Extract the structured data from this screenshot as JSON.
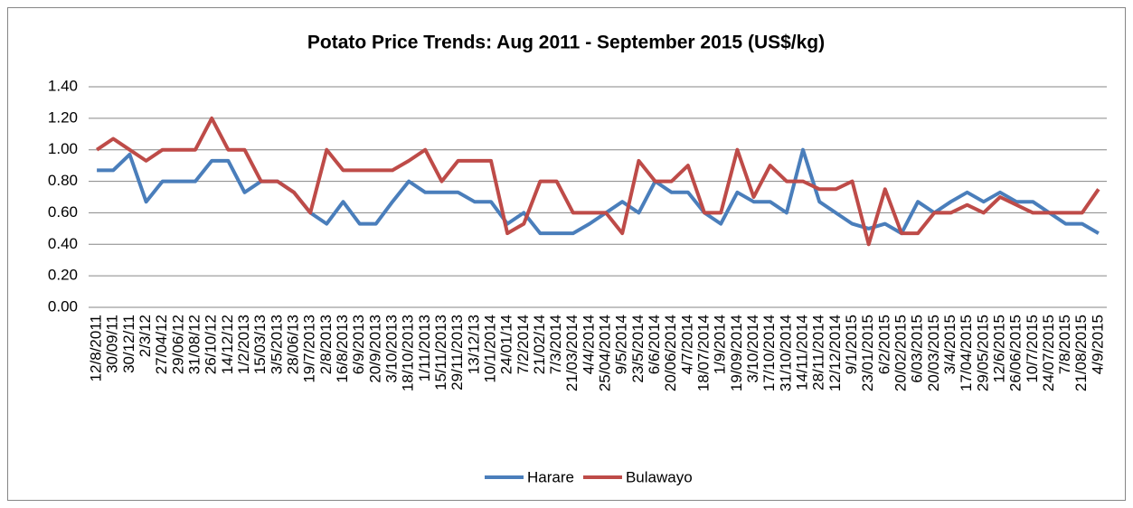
{
  "chart_data": {
    "type": "line",
    "title": "Potato Price Trends: Aug 2011 - September 2015 (US$/kg)",
    "categories": [
      "12/8/2011",
      "30/09/11",
      "30/12/11",
      "2/3/12",
      "27/04/12",
      "29/06/12",
      "31/08/12",
      "26/10/12",
      "14/12/12",
      "1/2/2013",
      "15/03/13",
      "3/5/2013",
      "28/06/13",
      "19/7/2013",
      "2/8/2013",
      "16/8/2013",
      "6/9/2013",
      "20/9/2013",
      "3/10/2013",
      "18/10/2013",
      "1/11/2013",
      "15/11/2013",
      "29/11/2013",
      "13/12/13",
      "10/1/2014",
      "24/01/14",
      "7/2/2014",
      "21/02/14",
      "7/3/2014",
      "21/03/2014",
      "4/4/2014",
      "25/04/2014",
      "9/5/2014",
      "23/5/2014",
      "6/6/2014",
      "20/06/2014",
      "4/7/2014",
      "18/07/2014",
      "1/9/2014",
      "19/09/2014",
      "3/10/2014",
      "17/10/2014",
      "31/10/2014",
      "14/11/2014",
      "28/11/2014",
      "12/12/2014",
      "9/1/2015",
      "23/01/2015",
      "6/2/2015",
      "20/02/2015",
      "6/03/2015",
      "20/03/2015",
      "3/4/2015",
      "17/04/2015",
      "29/05/2015",
      "12/6/2015",
      "26/06/2015",
      "10/7/2015",
      "24/07/2015",
      "7/8/2015",
      "21/08/2015",
      "4/9/2015"
    ],
    "series": [
      {
        "name": "Harare",
        "color": "#4a7ebb",
        "values": [
          0.87,
          0.87,
          0.97,
          0.67,
          0.8,
          0.8,
          0.8,
          0.93,
          0.93,
          0.73,
          0.8,
          0.8,
          0.73,
          0.6,
          0.53,
          0.67,
          0.53,
          0.53,
          0.67,
          0.8,
          0.73,
          0.73,
          0.73,
          0.67,
          0.67,
          0.53,
          0.6,
          0.47,
          0.47,
          0.47,
          0.53,
          0.6,
          0.67,
          0.6,
          0.8,
          0.73,
          0.73,
          0.6,
          0.53,
          0.73,
          0.67,
          0.67,
          0.6,
          1.0,
          0.67,
          0.6,
          0.53,
          0.5,
          0.53,
          0.47,
          0.67,
          0.6,
          0.67,
          0.73,
          0.67,
          0.73,
          0.67,
          0.67,
          0.6,
          0.53,
          0.53,
          0.47
        ]
      },
      {
        "name": "Bulawayo",
        "color": "#be4b48",
        "values": [
          1.0,
          1.07,
          1.0,
          0.93,
          1.0,
          1.0,
          1.0,
          1.2,
          1.0,
          1.0,
          0.8,
          0.8,
          0.73,
          0.6,
          1.0,
          0.87,
          0.87,
          0.87,
          0.87,
          0.93,
          1.0,
          0.8,
          0.93,
          0.93,
          0.93,
          0.47,
          0.53,
          0.8,
          0.8,
          0.6,
          0.6,
          0.6,
          0.47,
          0.93,
          0.8,
          0.8,
          0.9,
          0.6,
          0.6,
          1.0,
          0.7,
          0.9,
          0.8,
          0.8,
          0.75,
          0.75,
          0.8,
          0.4,
          0.75,
          0.47,
          0.47,
          0.6,
          0.6,
          0.65,
          0.6,
          0.7,
          0.65,
          0.6,
          0.6,
          0.6,
          0.6,
          0.75
        ]
      }
    ],
    "ylim": [
      0,
      1.4
    ],
    "yticks": [
      {
        "value": 0,
        "label": "0.00"
      },
      {
        "value": 0.2,
        "label": "0.20"
      },
      {
        "value": 0.4,
        "label": "0.40"
      },
      {
        "value": 0.6,
        "label": "0.60"
      },
      {
        "value": 0.8,
        "label": "0.80"
      },
      {
        "value": 1.0,
        "label": "1.00"
      },
      {
        "value": 1.2,
        "label": "1.20"
      },
      {
        "value": 1.4,
        "label": "1.40"
      }
    ],
    "grid": true,
    "legend": "bottom"
  }
}
